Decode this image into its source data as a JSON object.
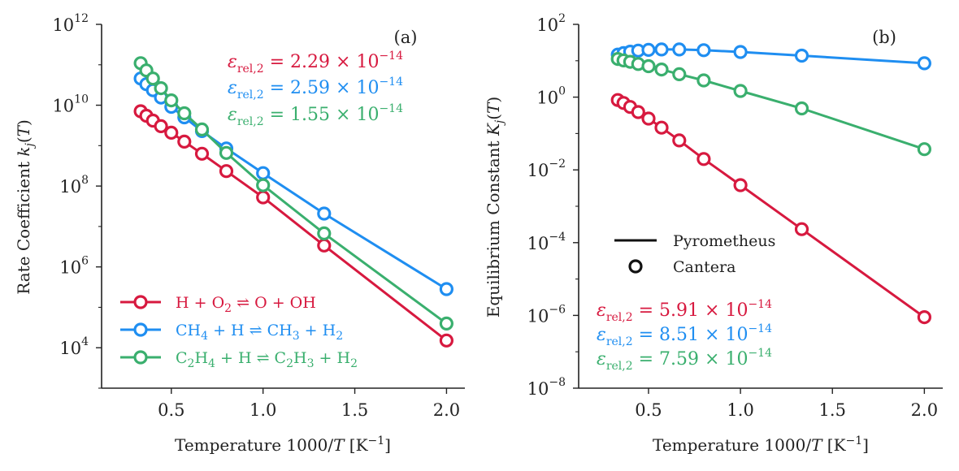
{
  "chart_data": [
    {
      "type": "line",
      "panel_label": "(a)",
      "xlabel": "Temperature 1000/T [K⁻¹]",
      "ylabel": "Rate Coefficient k_j(T)",
      "yscale": "log",
      "xlim": [
        0.12,
        2.1
      ],
      "ylim_exp": [
        3,
        12
      ],
      "xticks": [
        0.5,
        1.0,
        1.5,
        2.0
      ],
      "xtick_labels": [
        "0.5",
        "1.0",
        "1.5",
        "2.0"
      ],
      "yticks_exp": [
        4,
        6,
        8,
        10,
        12
      ],
      "ytick_base": "10",
      "ytick_exps": [
        "4",
        "6",
        "8",
        "10",
        "12"
      ],
      "x": [
        0.333,
        0.364,
        0.4,
        0.444,
        0.5,
        0.571,
        0.667,
        0.8,
        1.0,
        1.333,
        2.0
      ],
      "series": [
        {
          "name": "H + O₂ ⇌ O + OH",
          "color": "#d7193f",
          "log10_values": [
            9.85,
            9.74,
            9.62,
            9.48,
            9.32,
            9.1,
            8.8,
            8.37,
            7.72,
            6.53,
            4.18
          ]
        },
        {
          "name": "CH₄ + H ⇌ CH₃ + H₂",
          "color": "#1f8ef1",
          "log10_values": [
            10.66,
            10.52,
            10.37,
            10.19,
            9.96,
            9.7,
            9.36,
            8.93,
            8.32,
            7.32,
            5.45
          ]
        },
        {
          "name": "C₂H₄ + H ⇌ C₂H₃ + H₂",
          "color": "#3aaf6e",
          "log10_values": [
            11.04,
            10.86,
            10.66,
            10.42,
            10.12,
            9.8,
            9.4,
            8.82,
            8.02,
            6.83,
            4.6
          ]
        }
      ],
      "annotations": [
        {
          "text": "εrel,2 = 2.29 × 10⁻¹⁴",
          "color": "#d7193f"
        },
        {
          "text": "εrel,2 = 2.59 × 10⁻¹⁴",
          "color": "#1f8ef1"
        },
        {
          "text": "εrel,2 = 1.55 × 10⁻¹⁴",
          "color": "#3aaf6e"
        }
      ],
      "legend_placement": "lower-left"
    },
    {
      "type": "line",
      "panel_label": "(b)",
      "xlabel": "Temperature 1000/T [K⁻¹]",
      "ylabel": "Equilibrium Constant K_j(T)",
      "yscale": "log",
      "xlim": [
        0.12,
        2.1
      ],
      "ylim_exp": [
        -8,
        2
      ],
      "xticks": [
        0.5,
        1.0,
        1.5,
        2.0
      ],
      "xtick_labels": [
        "0.5",
        "1.0",
        "1.5",
        "2.0"
      ],
      "yticks_exp": [
        -8,
        -6,
        -4,
        -2,
        0,
        2
      ],
      "ytick_base": "10",
      "ytick_exps": [
        "−8",
        "−6",
        "−4",
        "−2",
        "0",
        "2"
      ],
      "x": [
        0.333,
        0.364,
        0.4,
        0.444,
        0.5,
        0.571,
        0.667,
        0.8,
        1.0,
        1.333,
        2.0
      ],
      "series": [
        {
          "name": "H + O₂ ⇌ O + OH",
          "color": "#d7193f",
          "log10_values": [
            -0.08,
            -0.16,
            -0.27,
            -0.41,
            -0.59,
            -0.84,
            -1.19,
            -1.7,
            -2.42,
            -3.63,
            -6.05
          ]
        },
        {
          "name": "CH₄ + H ⇌ CH₃ + H₂",
          "color": "#1f8ef1",
          "log10_values": [
            1.17,
            1.21,
            1.25,
            1.28,
            1.3,
            1.31,
            1.31,
            1.29,
            1.24,
            1.14,
            0.93
          ]
        },
        {
          "name": "C₂H₄ + H ⇌ C₂H₃ + H₂",
          "color": "#3aaf6e",
          "log10_values": [
            1.05,
            1.01,
            0.97,
            0.91,
            0.85,
            0.76,
            0.63,
            0.46,
            0.17,
            -0.31,
            -1.43
          ]
        }
      ],
      "annotations": [
        {
          "text": "εrel,2 = 5.91 × 10⁻¹⁴",
          "color": "#d7193f"
        },
        {
          "text": "εrel,2 = 8.51 × 10⁻¹⁴",
          "color": "#1f8ef1"
        },
        {
          "text": "εrel,2 = 7.59 × 10⁻¹⁴",
          "color": "#3aaf6e"
        }
      ],
      "legend": [
        {
          "label": "Pyrometheus",
          "marker": "line"
        },
        {
          "label": "Cantera",
          "marker": "circle"
        }
      ],
      "legend_placement": "center-left"
    }
  ]
}
